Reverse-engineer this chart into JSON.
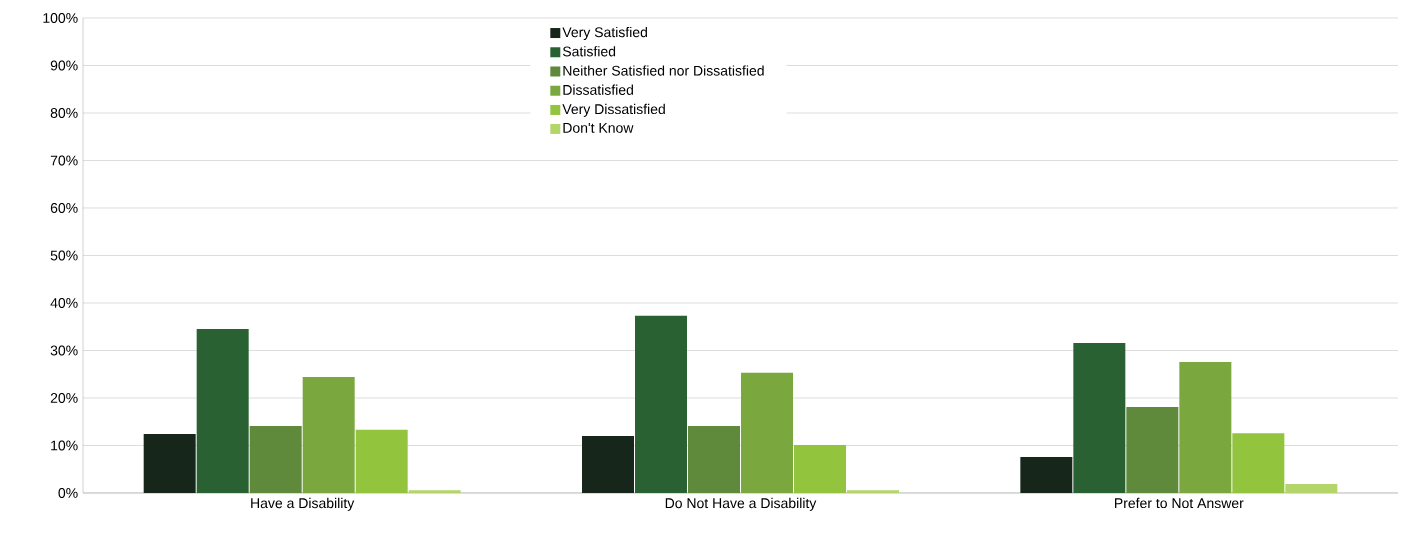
{
  "chart_data": {
    "type": "bar",
    "categories": [
      "Have a Disability",
      "Do Not Have a Disability",
      "Prefer to Not Answer"
    ],
    "series": [
      {
        "name": "Very Satisfied",
        "color": "#16261a",
        "values": [
          12.4,
          12.0,
          7.6
        ]
      },
      {
        "name": "Satisfied",
        "color": "#2a6132",
        "values": [
          34.5,
          37.3,
          31.6
        ]
      },
      {
        "name": "Neither Satisfied nor Dissatisfied",
        "color": "#5f8a3b",
        "values": [
          14.1,
          14.1,
          18.1
        ]
      },
      {
        "name": "Dissatisfied",
        "color": "#7aa83f",
        "values": [
          24.4,
          25.3,
          27.6
        ]
      },
      {
        "name": "Very Dissatisfied",
        "color": "#93c43d",
        "values": [
          13.3,
          10.1,
          12.6
        ]
      },
      {
        "name": "Don't Know",
        "color": "#b3d56a",
        "values": [
          0.6,
          0.6,
          1.9
        ]
      }
    ],
    "ylim": [
      0,
      100
    ],
    "yticks": [
      {
        "value": 0,
        "label": "0%"
      },
      {
        "value": 10,
        "label": "10%"
      },
      {
        "value": 20,
        "label": "20%"
      },
      {
        "value": 30,
        "label": "30%"
      },
      {
        "value": 40,
        "label": "40%"
      },
      {
        "value": 50,
        "label": "50%"
      },
      {
        "value": 60,
        "label": "60%"
      },
      {
        "value": 70,
        "label": "70%"
      },
      {
        "value": 80,
        "label": "80%"
      },
      {
        "value": 90,
        "label": "90%"
      },
      {
        "value": 100,
        "label": "100%"
      }
    ],
    "grid": "y",
    "legend": "top"
  }
}
